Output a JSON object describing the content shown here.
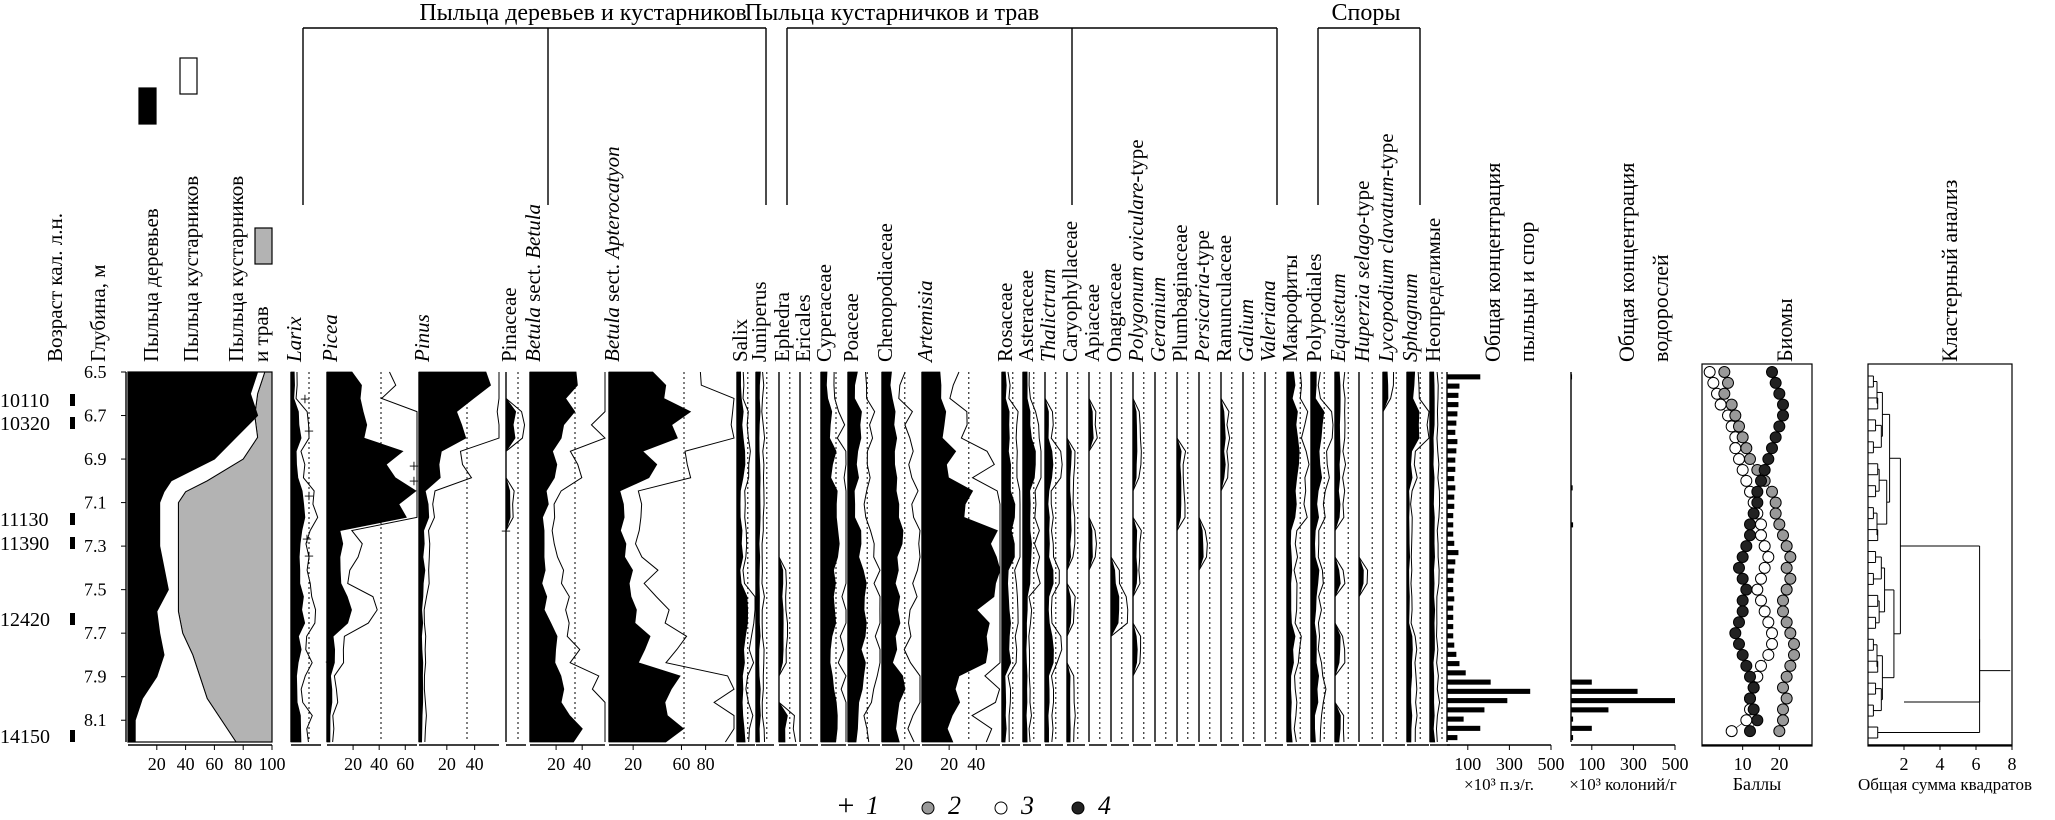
{
  "chart_data": {
    "type": "area",
    "group_headers": [
      {
        "key": "trees",
        "label": "Пыльца деревьев и кустарников"
      },
      {
        "key": "herbs",
        "label": "Пыльца кустарничков и трав"
      },
      {
        "key": "spores",
        "label": "Споры"
      }
    ],
    "left_axes": {
      "age_label": "Возраст кал. л.н.",
      "depth_label": "Глубина, м",
      "ages": [
        "10110",
        "10320",
        "11130",
        "11390",
        "12420",
        "14150"
      ],
      "depth_ticks": [
        "6.5",
        "6.7",
        "6.9",
        "7.1",
        "7.3",
        "7.5",
        "7.7",
        "7.9",
        "8.1"
      ],
      "depth_range": [
        6.5,
        8.2
      ]
    },
    "summary": {
      "legend": [
        {
          "label": "Пыльца деревьев",
          "color": "#000000"
        },
        {
          "label": "Пыльца кустарников",
          "color": "#ffffff"
        },
        {
          "label": "Пыльца кустарников",
          "color": "#b3b3b3"
        }
      ],
      "legend_extra": "и трав",
      "ticks": [
        "20",
        "40",
        "60",
        "80",
        "100"
      ],
      "depths": [
        6.5,
        6.6,
        6.7,
        6.8,
        6.9,
        7.0,
        7.05,
        7.1,
        7.2,
        7.3,
        7.4,
        7.5,
        7.6,
        7.7,
        7.8,
        7.9,
        8.0,
        8.1,
        8.2
      ],
      "trees": [
        90,
        85,
        90,
        75,
        60,
        30,
        25,
        22,
        22,
        22,
        25,
        28,
        20,
        22,
        25,
        20,
        10,
        5,
        5
      ],
      "shrubs": [
        95,
        90,
        88,
        90,
        80,
        55,
        40,
        35,
        35,
        35,
        35,
        35,
        35,
        38,
        45,
        50,
        55,
        65,
        75
      ]
    },
    "taxa": [
      {
        "name": "Larix",
        "italic": true,
        "ticks": []
      },
      {
        "name": "Picea",
        "italic": true,
        "ticks": [
          "20",
          "40",
          "60"
        ]
      },
      {
        "name": "Pinus",
        "italic": true,
        "ticks": [
          "20",
          "40"
        ]
      },
      {
        "name": "Pinaceae",
        "italic": false,
        "ticks": []
      },
      {
        "name": "Betula",
        "name_post": " sect. ",
        "name_post2": "Betula",
        "italic": true,
        "ticks": [
          "20",
          "40"
        ]
      },
      {
        "name": "Betula",
        "name_post": " sect. ",
        "name_post2": "Apterocatyon",
        "italic": true,
        "ticks": [
          "20",
          "60",
          "80"
        ]
      },
      {
        "name": "Salix",
        "italic": false,
        "ticks": []
      },
      {
        "name": "Juniperus",
        "italic": false,
        "ticks": []
      },
      {
        "name": "Ephedra",
        "italic": false,
        "ticks": []
      },
      {
        "name": "Ericales",
        "italic": false,
        "ticks": []
      },
      {
        "name": "Cyperaceae",
        "italic": false,
        "ticks": []
      },
      {
        "name": "Poaceae",
        "italic": false,
        "ticks": []
      },
      {
        "name": "Chenopodiaceae",
        "italic": false,
        "ticks": [
          "20"
        ]
      },
      {
        "name": "Artemisia",
        "italic": true,
        "ticks": [
          "20",
          "40"
        ]
      },
      {
        "name": "Rosaceae",
        "italic": false,
        "ticks": []
      },
      {
        "name": "Asteraceae",
        "italic": false,
        "ticks": []
      },
      {
        "name": "Thalictrum",
        "italic": true,
        "ticks": []
      },
      {
        "name": "Caryophyllaceae",
        "italic": false,
        "ticks": []
      },
      {
        "name": "Apiaceae",
        "italic": false,
        "ticks": []
      },
      {
        "name": "Onagraceae",
        "italic": false,
        "ticks": []
      },
      {
        "name": "Polygonum aviculare",
        "name_post": "-type",
        "italic": true,
        "ticks": []
      },
      {
        "name": "Geranium",
        "italic": true,
        "ticks": []
      },
      {
        "name": "Plumbaginaceae",
        "italic": false,
        "ticks": []
      },
      {
        "name": "Persicaria",
        "name_post": "-type",
        "italic": true,
        "ticks": []
      },
      {
        "name": "Ranunculaceae",
        "italic": false,
        "ticks": []
      },
      {
        "name": "Galium",
        "italic": true,
        "ticks": []
      },
      {
        "name": "Valeriana",
        "italic": true,
        "ticks": []
      },
      {
        "name": "Макрофиты",
        "italic": false,
        "ticks": []
      },
      {
        "name": "Polypodiales",
        "italic": false,
        "ticks": []
      },
      {
        "name": "Equisetum",
        "italic": true,
        "ticks": []
      },
      {
        "name": "Huperzia selago",
        "name_post": "-type",
        "italic": true,
        "ticks": []
      },
      {
        "name": "Lycopodium clavatum",
        "name_post": "-type",
        "italic": true,
        "ticks": []
      },
      {
        "name": "Sphagnum",
        "italic": true,
        "ticks": []
      },
      {
        "name": "Неопределимые",
        "italic": false,
        "ticks": []
      }
    ],
    "pollen_conc": {
      "title1": "Общая концентрация",
      "title2": "пыльцы и спор",
      "ticks": [
        "100",
        "300",
        "500"
      ],
      "unit": "×10³ п.з/г.",
      "values": [
        160,
        60,
        55,
        55,
        50,
        45,
        40,
        50,
        45,
        40,
        40,
        35,
        40,
        35,
        35,
        30,
        30,
        30,
        35,
        55,
        40,
        35,
        30,
        30,
        35,
        30,
        30,
        30,
        30,
        35,
        45,
        60,
        90,
        210,
        400,
        290,
        180,
        80,
        160,
        50
      ]
    },
    "algae_conc": {
      "title1": "Общая концентрация",
      "title2": "водорослей",
      "ticks": [
        "100",
        "300",
        "500"
      ],
      "unit": "×10³ колоний/г",
      "values": [
        5,
        2,
        2,
        2,
        2,
        2,
        2,
        2,
        2,
        2,
        2,
        2,
        8,
        2,
        2,
        2,
        10,
        2,
        2,
        2,
        2,
        2,
        2,
        2,
        2,
        2,
        2,
        2,
        2,
        2,
        2,
        2,
        2,
        100,
        320,
        500,
        180,
        10,
        100,
        10
      ]
    },
    "biomes": {
      "title": "Биомы",
      "xlabel": "Баллы",
      "ticks": [
        "10",
        "20"
      ],
      "depths": [
        6.5,
        6.55,
        6.6,
        6.65,
        6.7,
        6.75,
        6.8,
        6.85,
        6.9,
        6.95,
        7.0,
        7.05,
        7.1,
        7.15,
        7.2,
        7.25,
        7.3,
        7.35,
        7.4,
        7.45,
        7.5,
        7.55,
        7.6,
        7.65,
        7.7,
        7.75,
        7.8,
        7.85,
        7.9,
        7.95,
        8.0,
        8.05,
        8.1,
        8.15
      ],
      "s2": [
        5,
        6,
        5,
        7,
        8,
        9,
        10,
        11,
        12,
        14,
        16,
        18,
        19,
        19,
        20,
        21,
        22,
        23,
        22,
        23,
        22,
        21,
        21,
        22,
        23,
        24,
        24,
        23,
        22,
        21,
        22,
        21,
        21,
        20
      ],
      "s3": [
        1,
        2,
        3,
        4,
        6,
        7,
        8,
        8,
        9,
        10,
        11,
        12,
        13,
        14,
        15,
        15,
        16,
        17,
        16,
        15,
        14,
        15,
        16,
        17,
        18,
        18,
        17,
        15,
        14,
        13,
        12,
        12,
        11,
        7
      ],
      "s4": [
        18,
        19,
        20,
        21,
        21,
        20,
        19,
        18,
        17,
        16,
        15,
        14,
        14,
        13,
        12,
        12,
        11,
        10,
        9,
        10,
        11,
        10,
        10,
        9,
        8,
        9,
        10,
        11,
        12,
        13,
        12,
        13,
        14,
        12
      ]
    },
    "cluster": {
      "title": "Кластерный анализ",
      "xlabel": "Общая сумма квадратов",
      "ticks": [
        "2",
        "4",
        "6",
        "8"
      ],
      "xlim": [
        0,
        8
      ]
    },
    "legend_bottom": [
      {
        "marker": "+",
        "label": "1"
      },
      {
        "marker": "grey-circle",
        "label": "2"
      },
      {
        "marker": "white-circle",
        "label": "3"
      },
      {
        "marker": "black-circle",
        "label": "4"
      }
    ]
  }
}
